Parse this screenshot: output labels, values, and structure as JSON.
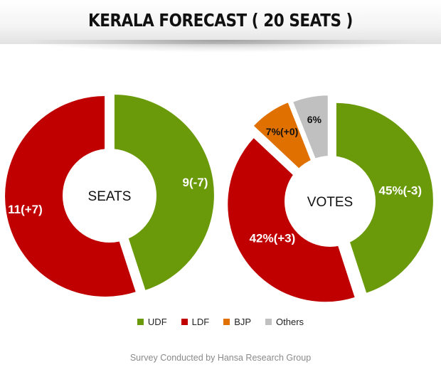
{
  "title": "KERALA FORECAST ( 20 SEATS )",
  "colors": {
    "UDF": "#6a9a0a",
    "LDF": "#c00000",
    "BJP": "#e07000",
    "Others": "#c0c0c0"
  },
  "chart_data": [
    {
      "type": "pie",
      "center_label": "SEATS",
      "slices": [
        {
          "name": "UDF",
          "value": 9,
          "label": "9(-7)"
        },
        {
          "name": "LDF",
          "value": 11,
          "label": "11(+7)"
        }
      ]
    },
    {
      "type": "pie",
      "center_label": "VOTES",
      "slices": [
        {
          "name": "UDF",
          "value": 45,
          "label": "45%(-3)"
        },
        {
          "name": "LDF",
          "value": 42,
          "label": "42%(+3)"
        },
        {
          "name": "BJP",
          "value": 7,
          "label": "7%(+0)"
        },
        {
          "name": "Others",
          "value": 6,
          "label": "6%"
        }
      ]
    }
  ],
  "legend": [
    {
      "name": "UDF",
      "label": "UDF"
    },
    {
      "name": "LDF",
      "label": "LDF"
    },
    {
      "name": "BJP",
      "label": "BJP"
    },
    {
      "name": "Others",
      "label": "Others"
    }
  ],
  "footnote": "Survey Conducted by Hansa Research Group"
}
